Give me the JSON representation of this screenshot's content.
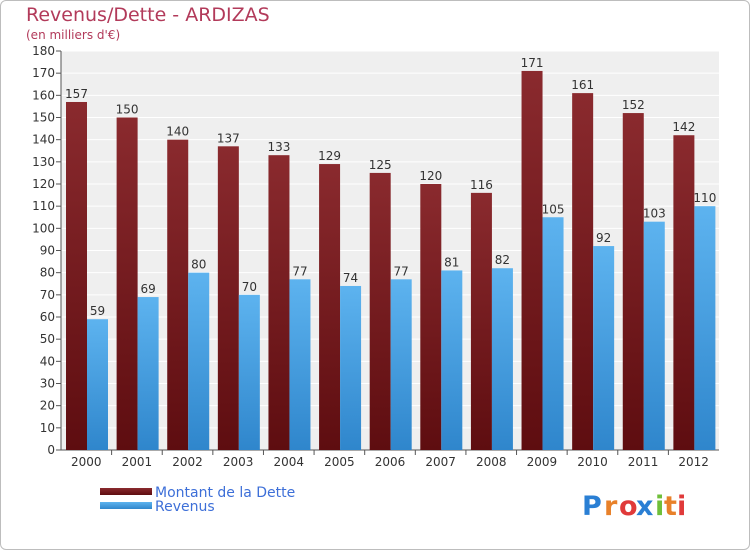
{
  "chart_data": {
    "type": "bar",
    "title": "Revenus/Dette - ARDIZAS",
    "subtitle": "(en milliers d'€)",
    "categories": [
      "2000",
      "2001",
      "2002",
      "2003",
      "2004",
      "2005",
      "2006",
      "2007",
      "2008",
      "2009",
      "2010",
      "2011",
      "2012"
    ],
    "series": [
      {
        "name": "Montant de la Dette",
        "values": [
          157,
          150,
          140,
          137,
          133,
          129,
          125,
          120,
          116,
          171,
          161,
          152,
          142
        ],
        "color": "#7a1e22"
      },
      {
        "name": "Revenus",
        "values": [
          59,
          69,
          80,
          70,
          77,
          74,
          77,
          81,
          82,
          105,
          92,
          103,
          110
        ],
        "color": "#4aa3e6"
      }
    ],
    "ylim": [
      0,
      180
    ],
    "ytick_step": 10,
    "grid": true,
    "legend_position": "bottom-left"
  },
  "logo": {
    "letters": [
      "P",
      "r",
      "o",
      "x",
      "i",
      "t",
      "i"
    ],
    "colors": [
      "#2a7fd4",
      "#e8812a",
      "#e03a3a",
      "#2a7fd4",
      "#6fbf3a",
      "#e8812a",
      "#e03a3a"
    ]
  }
}
